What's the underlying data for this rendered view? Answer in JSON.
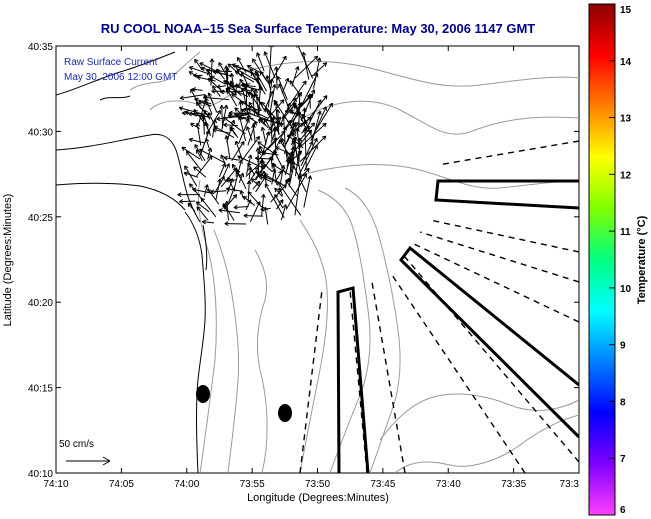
{
  "title": "RU COOL  NOAA–15  Sea Surface Temperature:  May 30, 2006 1147 GMT",
  "overlay": {
    "line1": "Raw Surface Current",
    "line2": "May 30, 2006 12:00 GMT"
  },
  "scale_label": "50 cm/s",
  "axes": {
    "xlabel": "Longitude (Degrees:Minutes)",
    "ylabel": "Latitude (Degrees:Minutes)",
    "xticks": [
      "74:10",
      "74:05",
      "74:00",
      "73:55",
      "73:50",
      "73:45",
      "73:40",
      "73:35",
      "73:3"
    ],
    "yticks": [
      "40:35",
      "40:30",
      "40:25",
      "40:20",
      "40:15",
      "40:10"
    ]
  },
  "colorbar": {
    "label": "Temperature (°C)",
    "ticks": [
      "15",
      "14",
      "13",
      "12",
      "11",
      "10",
      "9",
      "8",
      "7",
      "6"
    ],
    "stops": [
      "#8b0000",
      "#ff0000",
      "#ff8000",
      "#ffff00",
      "#80ff00",
      "#00ff80",
      "#00ffff",
      "#0080ff",
      "#0000ff",
      "#8000ff",
      "#ff40ff"
    ]
  },
  "colors": {
    "title": "#00008b",
    "overlay": "#1a2cb0",
    "land_line": "#000000",
    "bathymetry": "#9a9a9a"
  }
}
